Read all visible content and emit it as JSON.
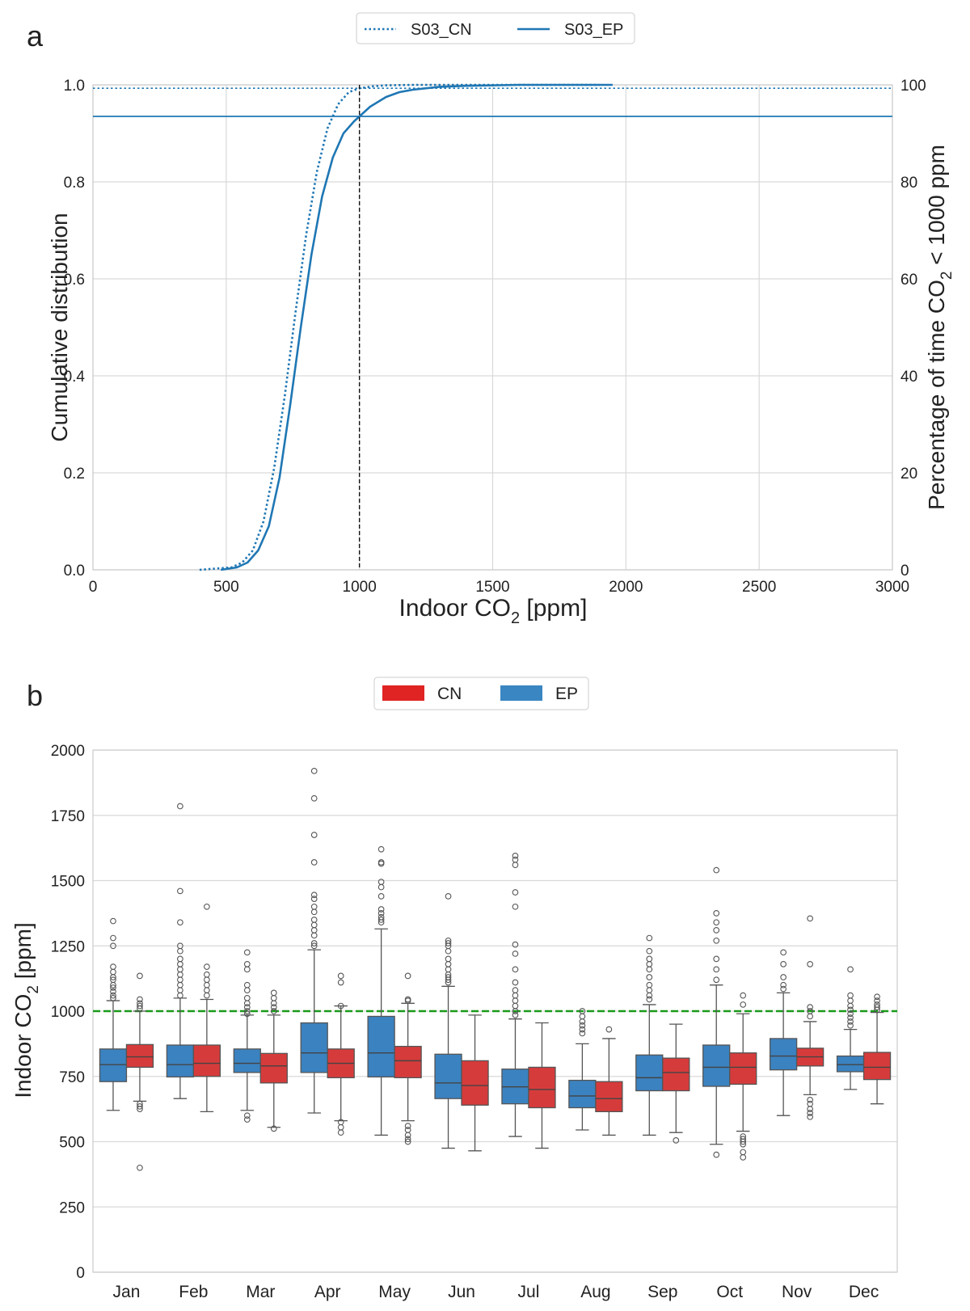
{
  "chart_data": [
    {
      "panel": "a",
      "type": "line",
      "title": "",
      "xlabel": "Indoor CO₂ [ppm]",
      "ylabel": "Cumulative distribution",
      "y2label": "Percentage of time CO₂ < 1000 ppm",
      "xlim": [
        0,
        3000
      ],
      "ylim": [
        0,
        1
      ],
      "y2lim": [
        0,
        100
      ],
      "xticks": [
        "0",
        "500",
        "1000",
        "1500",
        "2000",
        "2500",
        "3000"
      ],
      "yticks": [
        "0.0",
        "0.2",
        "0.4",
        "0.6",
        "0.8",
        "1.0"
      ],
      "y2ticks": [
        "0",
        "20",
        "40",
        "60",
        "80",
        "100"
      ],
      "threshold_x": 1000,
      "legend": {
        "placement": "top-center",
        "entries": [
          "S03_CN",
          "S03_EP"
        ]
      },
      "series": [
        {
          "name": "S03_CN",
          "style": "dotted",
          "color": "#1f77b4",
          "pct_below_threshold": 99.3,
          "x": [
            400,
            520,
            560,
            600,
            640,
            680,
            720,
            760,
            800,
            840,
            880,
            920,
            960,
            1000,
            1050,
            1100,
            1200,
            1300,
            1500,
            1900
          ],
          "y": [
            0.0,
            0.005,
            0.015,
            0.04,
            0.1,
            0.21,
            0.36,
            0.53,
            0.69,
            0.82,
            0.91,
            0.96,
            0.985,
            0.993,
            0.997,
            0.999,
            1.0,
            1.0,
            1.0,
            1.0
          ]
        },
        {
          "name": "S03_EP",
          "style": "solid",
          "color": "#1f77b4",
          "pct_below_threshold": 93.5,
          "x": [
            480,
            540,
            580,
            620,
            660,
            700,
            740,
            780,
            820,
            860,
            900,
            940,
            980,
            1000,
            1040,
            1100,
            1150,
            1200,
            1300,
            1400,
            1600,
            1950
          ],
          "y": [
            0.0,
            0.005,
            0.015,
            0.04,
            0.09,
            0.19,
            0.34,
            0.5,
            0.65,
            0.77,
            0.85,
            0.9,
            0.925,
            0.935,
            0.955,
            0.975,
            0.985,
            0.99,
            0.996,
            0.998,
            1.0,
            1.0
          ]
        }
      ]
    },
    {
      "panel": "b",
      "type": "box",
      "title": "",
      "xlabel": "",
      "ylabel": "Indoor CO₂ [ppm]",
      "ylim": [
        0,
        2000
      ],
      "yticks": [
        "0",
        "250",
        "500",
        "750",
        "1000",
        "1250",
        "1500",
        "1750",
        "2000"
      ],
      "reference_line": 1000,
      "legend": {
        "placement": "top-center",
        "entries": [
          "CN",
          "EP"
        ]
      },
      "categories": [
        "Jan",
        "Feb",
        "Mar",
        "Apr",
        "May",
        "Jun",
        "Jul",
        "Aug",
        "Sep",
        "Oct",
        "Nov",
        "Dec"
      ],
      "series": [
        {
          "name": "EP",
          "color": "#3b82c0",
          "boxes": [
            {
              "whislo": 620,
              "q1": 730,
              "med": 795,
              "q3": 855,
              "whishi": 1040,
              "fliers": [
                1050,
                1060,
                1075,
                1090,
                1100,
                1120,
                1130,
                1150,
                1170,
                1250,
                1280,
                1345
              ]
            },
            {
              "whislo": 665,
              "q1": 748,
              "med": 795,
              "q3": 870,
              "whishi": 1050,
              "fliers": [
                1060,
                1080,
                1100,
                1120,
                1140,
                1160,
                1180,
                1200,
                1230,
                1250,
                1340,
                1460,
                1785
              ]
            },
            {
              "whislo": 620,
              "q1": 765,
              "med": 800,
              "q3": 855,
              "whishi": 985,
              "fliers": [
                585,
                600,
                990,
                1000,
                1015,
                1030,
                1050,
                1080,
                1100,
                1160,
                1180,
                1225
              ]
            },
            {
              "whislo": 610,
              "q1": 765,
              "med": 840,
              "q3": 955,
              "whishi": 1235,
              "fliers": [
                1250,
                1260,
                1290,
                1310,
                1330,
                1350,
                1380,
                1400,
                1430,
                1445,
                1570,
                1675,
                1815,
                1920
              ]
            },
            {
              "whislo": 525,
              "q1": 748,
              "med": 840,
              "q3": 980,
              "whishi": 1315,
              "fliers": [
                1340,
                1350,
                1360,
                1375,
                1390,
                1440,
                1475,
                1495,
                1565,
                1570,
                1620
              ]
            },
            {
              "whislo": 475,
              "q1": 665,
              "med": 725,
              "q3": 835,
              "whishi": 1095,
              "fliers": [
                1110,
                1120,
                1130,
                1140,
                1160,
                1180,
                1200,
                1230,
                1250,
                1260,
                1270,
                1440
              ]
            },
            {
              "whislo": 520,
              "q1": 645,
              "med": 710,
              "q3": 778,
              "whishi": 970,
              "fliers": [
                985,
                1000,
                1020,
                1040,
                1060,
                1080,
                1110,
                1160,
                1220,
                1255,
                1400,
                1455,
                1560,
                1580,
                1595
              ]
            },
            {
              "whislo": 545,
              "q1": 630,
              "med": 675,
              "q3": 735,
              "whishi": 875,
              "fliers": [
                915,
                930,
                945,
                960,
                980,
                1000
              ]
            },
            {
              "whislo": 525,
              "q1": 695,
              "med": 745,
              "q3": 832,
              "whishi": 1025,
              "fliers": [
                1045,
                1060,
                1080,
                1100,
                1130,
                1160,
                1180,
                1200,
                1230,
                1280
              ]
            },
            {
              "whislo": 490,
              "q1": 712,
              "med": 785,
              "q3": 870,
              "whishi": 1100,
              "fliers": [
                450,
                1120,
                1160,
                1200,
                1270,
                1310,
                1340,
                1375,
                1540
              ]
            },
            {
              "whislo": 600,
              "q1": 775,
              "med": 828,
              "q3": 895,
              "whishi": 1070,
              "fliers": [
                1085,
                1100,
                1130,
                1180,
                1225
              ]
            },
            {
              "whislo": 700,
              "q1": 768,
              "med": 795,
              "q3": 828,
              "whishi": 930,
              "fliers": [
                945,
                960,
                975,
                990,
                1005,
                1020,
                1040,
                1060,
                1160
              ]
            }
          ]
        },
        {
          "name": "CN",
          "color": "#d63b3b",
          "boxes": [
            {
              "whislo": 655,
              "q1": 785,
              "med": 825,
              "q3": 872,
              "whishi": 1000,
              "fliers": [
                400,
                625,
                635,
                645,
                1010,
                1020,
                1030,
                1045,
                1135
              ]
            },
            {
              "whislo": 615,
              "q1": 750,
              "med": 800,
              "q3": 870,
              "whishi": 1045,
              "fliers": [
                1060,
                1080,
                1100,
                1120,
                1140,
                1170,
                1400
              ]
            },
            {
              "whislo": 555,
              "q1": 725,
              "med": 790,
              "q3": 838,
              "whishi": 985,
              "fliers": [
                550,
                1000,
                1015,
                1030,
                1050,
                1070
              ]
            },
            {
              "whislo": 580,
              "q1": 745,
              "med": 800,
              "q3": 855,
              "whishi": 1020,
              "fliers": [
                535,
                555,
                575,
                1020,
                1110,
                1135
              ]
            },
            {
              "whislo": 580,
              "q1": 745,
              "med": 810,
              "q3": 865,
              "whishi": 1030,
              "fliers": [
                500,
                510,
                525,
                545,
                560,
                1040,
                1045,
                1135
              ]
            },
            {
              "whislo": 465,
              "q1": 640,
              "med": 715,
              "q3": 810,
              "whishi": 985,
              "fliers": []
            },
            {
              "whislo": 475,
              "q1": 630,
              "med": 700,
              "q3": 785,
              "whishi": 955,
              "fliers": []
            },
            {
              "whislo": 525,
              "q1": 615,
              "med": 665,
              "q3": 730,
              "whishi": 895,
              "fliers": [
                930
              ]
            },
            {
              "whislo": 535,
              "q1": 695,
              "med": 765,
              "q3": 820,
              "whishi": 950,
              "fliers": [
                505
              ]
            },
            {
              "whislo": 540,
              "q1": 720,
              "med": 785,
              "q3": 840,
              "whishi": 990,
              "fliers": [
                440,
                460,
                490,
                500,
                510,
                520,
                1025,
                1060
              ]
            },
            {
              "whislo": 680,
              "q1": 790,
              "med": 825,
              "q3": 858,
              "whishi": 960,
              "fliers": [
                595,
                610,
                625,
                645,
                660,
                980,
                1000,
                1015,
                1180,
                1355
              ]
            },
            {
              "whislo": 645,
              "q1": 738,
              "med": 785,
              "q3": 842,
              "whishi": 995,
              "fliers": [
                1005,
                1015,
                1025,
                1040,
                1055
              ]
            }
          ]
        }
      ]
    }
  ],
  "panels": {
    "a": {
      "label": "a",
      "xlabel_main": "Indoor CO",
      "xlabel_sub": "2",
      "xlabel_tail": " [ppm]",
      "ylabel": "Cumulative distribution",
      "y2label_main": "Percentage of time CO",
      "y2label_sub": "2",
      "y2label_tail": " < 1000 ppm",
      "legend": [
        "S03_CN",
        "S03_EP"
      ]
    },
    "b": {
      "label": "b",
      "ylabel_main": "Indoor CO",
      "ylabel_sub": "2",
      "ylabel_tail": " [ppm]",
      "legend": [
        "CN",
        "EP"
      ]
    }
  },
  "colors": {
    "line": "#1f77b4",
    "ep": "#3b82c0",
    "cn": "#d63b3b",
    "grid": "#d9d9d9",
    "reference": "#1a9a1a"
  }
}
